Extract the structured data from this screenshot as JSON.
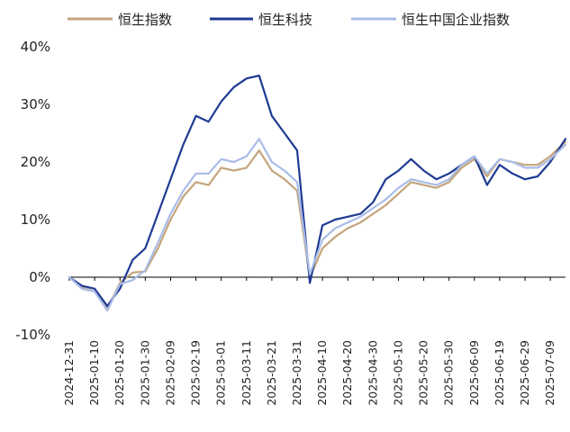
{
  "chart_data": {
    "type": "line",
    "title": "",
    "xlabel": "",
    "ylabel": "",
    "ylim": [
      -10,
      40
    ],
    "yticks": [
      -10,
      0,
      10,
      20,
      30,
      40
    ],
    "y_tick_suffix": "%",
    "grid": false,
    "legend_position": "top",
    "x_tick_labels": [
      "2024-12-31",
      "2025-01-10",
      "2025-01-20",
      "2025-01-30",
      "2025-02-09",
      "2025-02-19",
      "2025-03-01",
      "2025-03-11",
      "2025-03-21",
      "2025-03-31",
      "2025-04-10",
      "2025-04-20",
      "2025-04-30",
      "2025-05-10",
      "2025-05-20",
      "2025-05-30",
      "2025-06-09",
      "2025-06-19",
      "2025-06-29",
      "2025-07-09"
    ],
    "x": [
      "2024-12-31",
      "2025-01-05",
      "2025-01-10",
      "2025-01-15",
      "2025-01-20",
      "2025-01-25",
      "2025-01-30",
      "2025-02-04",
      "2025-02-09",
      "2025-02-14",
      "2025-02-19",
      "2025-02-24",
      "2025-03-01",
      "2025-03-06",
      "2025-03-11",
      "2025-03-16",
      "2025-03-21",
      "2025-03-26",
      "2025-03-31",
      "2025-04-05",
      "2025-04-10",
      "2025-04-15",
      "2025-04-20",
      "2025-04-25",
      "2025-04-30",
      "2025-05-05",
      "2025-05-10",
      "2025-05-15",
      "2025-05-20",
      "2025-05-25",
      "2025-05-30",
      "2025-06-04",
      "2025-06-09",
      "2025-06-14",
      "2025-06-19",
      "2025-06-24",
      "2025-06-29",
      "2025-07-04",
      "2025-07-09",
      "2025-07-15"
    ],
    "series": [
      {
        "name": "恒生指数",
        "color": "#C4A57A",
        "values": [
          0,
          -1.8,
          -2.5,
          -5.5,
          -1.0,
          0.8,
          1.0,
          5.0,
          10.0,
          14.0,
          16.5,
          16.0,
          19.0,
          18.5,
          19.0,
          22.0,
          18.5,
          17.0,
          15.0,
          0.0,
          5.0,
          7.0,
          8.5,
          9.5,
          11.0,
          12.5,
          14.5,
          16.5,
          16.0,
          15.5,
          16.5,
          19.0,
          20.5,
          17.5,
          20.5,
          20.0,
          19.5,
          19.5,
          21.0,
          23.5
        ]
      },
      {
        "name": "恒生科技",
        "color": "#1F3A93",
        "values": [
          0,
          -1.5,
          -2.0,
          -5.0,
          -2.0,
          3.0,
          5.0,
          11.0,
          17.0,
          23.0,
          28.0,
          27.0,
          30.5,
          33.0,
          34.5,
          35.0,
          28.0,
          25.0,
          22.0,
          -1.0,
          9.0,
          10.0,
          10.5,
          11.0,
          13.0,
          17.0,
          18.5,
          20.5,
          18.5,
          17.0,
          18.0,
          19.5,
          21.0,
          16.0,
          19.5,
          18.0,
          17.0,
          17.5,
          20.0,
          24.0
        ]
      },
      {
        "name": "恒生中国企业指数",
        "color": "#A9BCE8",
        "values": [
          0,
          -2.0,
          -2.5,
          -5.8,
          -1.2,
          -0.5,
          1.2,
          6.0,
          11.0,
          15.0,
          18.0,
          18.0,
          20.5,
          20.0,
          21.0,
          24.0,
          20.0,
          18.5,
          16.5,
          0.5,
          6.5,
          8.5,
          9.5,
          10.5,
          12.0,
          13.5,
          15.5,
          17.0,
          16.5,
          16.0,
          17.0,
          19.5,
          21.0,
          18.0,
          20.5,
          20.0,
          19.0,
          19.0,
          20.5,
          23.0
        ]
      }
    ]
  }
}
